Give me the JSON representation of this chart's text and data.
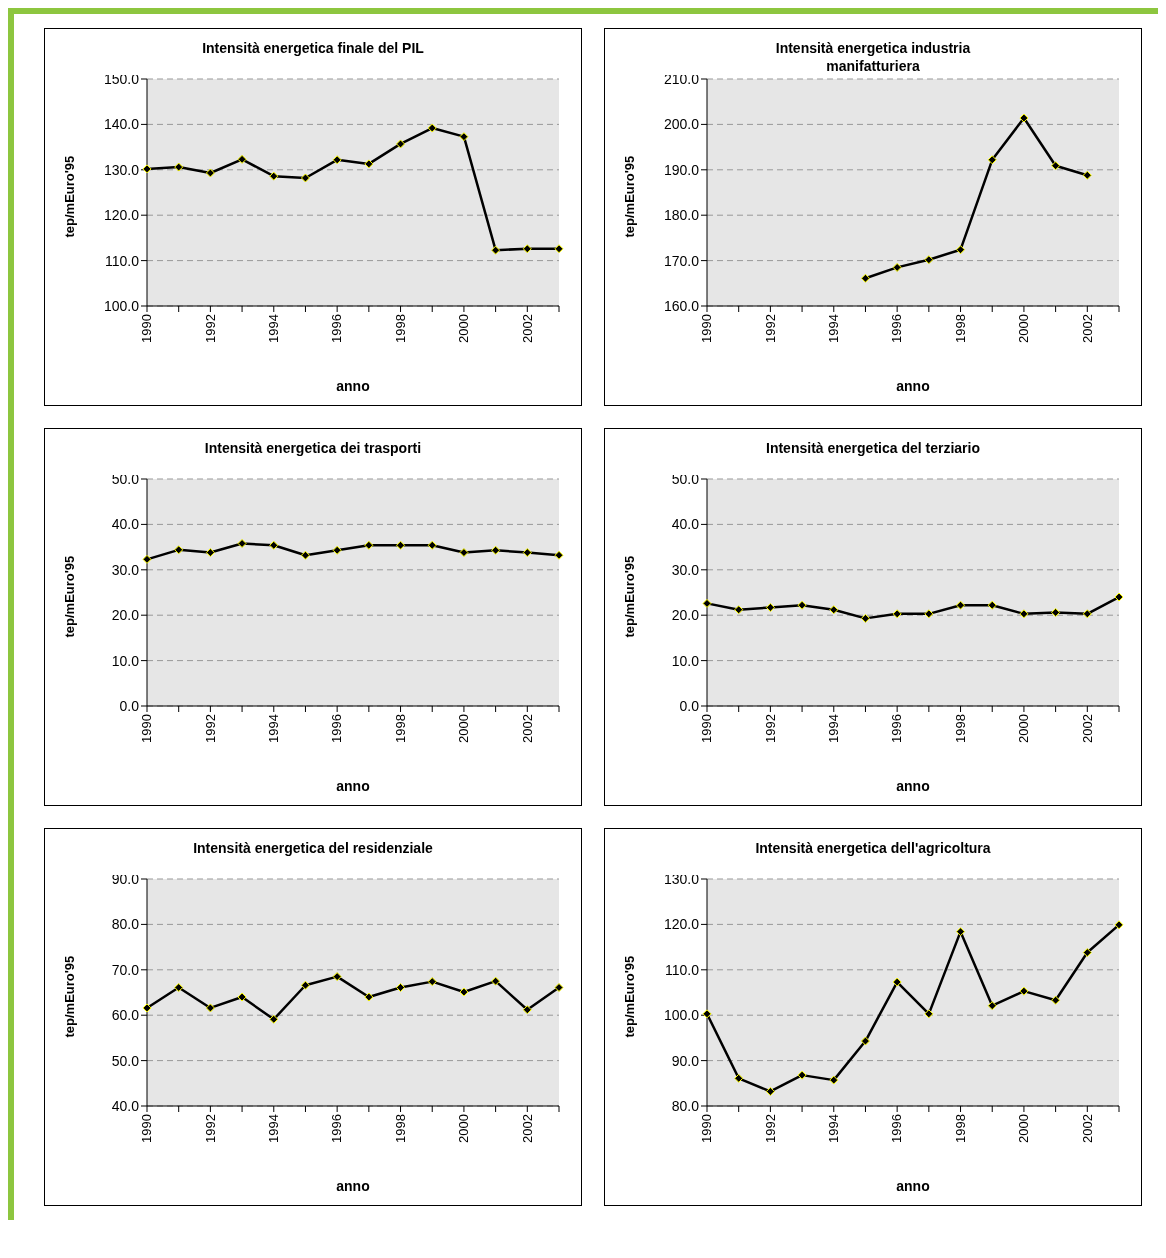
{
  "chart_data": [
    {
      "type": "line",
      "title": "Intensità energetica finale del PIL",
      "xlabel": "anno",
      "ylabel": "tep/mEuro'95",
      "categories": [
        "1990",
        null,
        "1992",
        null,
        "1994",
        null,
        "1996",
        null,
        "1998",
        null,
        "2000",
        null,
        "2002",
        null
      ],
      "series": [
        {
          "color": "#000000",
          "values": [
            130.2,
            130.6,
            129.3,
            132.3,
            128.6,
            128.2,
            132.2,
            131.3,
            135.7,
            139.2,
            137.3,
            112.3,
            112.6,
            112.6
          ]
        }
      ],
      "ylim": [
        100,
        150
      ],
      "yticks": [
        {
          "value": 100,
          "label": "100.0"
        },
        {
          "value": 110,
          "label": "110.0"
        },
        {
          "value": 120,
          "label": "120.0"
        },
        {
          "value": 130,
          "label": "130.0"
        },
        {
          "value": 140,
          "label": "140.0"
        },
        {
          "value": 150,
          "label": "150.0"
        }
      ],
      "grid": "y",
      "marker": "diamond"
    },
    {
      "type": "line",
      "title": "Intensità energetica industria manifatturiera",
      "xlabel": "anno",
      "ylabel": "tep/mEuro'95",
      "categories": [
        "1990",
        null,
        "1992",
        null,
        "1994",
        null,
        "1996",
        null,
        "1998",
        null,
        "2000",
        null,
        "2002",
        null
      ],
      "series": [
        {
          "color": "#000000",
          "values": [
            null,
            null,
            null,
            null,
            null,
            166.1,
            168.5,
            170.2,
            172.4,
            192.2,
            201.4,
            190.9,
            188.8,
            null
          ]
        }
      ],
      "ylim": [
        160,
        210
      ],
      "yticks": [
        {
          "value": 160,
          "label": "160.0"
        },
        {
          "value": 170,
          "label": "170.0"
        },
        {
          "value": 180,
          "label": "180.0"
        },
        {
          "value": 190,
          "label": "190.0"
        },
        {
          "value": 200,
          "label": "200.0"
        },
        {
          "value": 210,
          "label": "210.0"
        }
      ],
      "grid": "y",
      "marker": "diamond"
    },
    {
      "type": "line",
      "title": "Intensità energetica dei trasporti",
      "xlabel": "anno",
      "ylabel": "tep/mEuro'95",
      "categories": [
        "1990",
        null,
        "1992",
        null,
        "1994",
        null,
        "1996",
        null,
        "1998",
        null,
        "2000",
        null,
        "2002",
        null
      ],
      "series": [
        {
          "color": "#000000",
          "values": [
            32.3,
            34.4,
            33.8,
            35.8,
            35.4,
            33.2,
            34.3,
            35.4,
            35.4,
            35.4,
            33.8,
            34.3,
            33.8,
            33.2
          ]
        }
      ],
      "ylim": [
        0,
        50
      ],
      "yticks": [
        {
          "value": 0,
          "label": "0.0"
        },
        {
          "value": 10,
          "label": "10.0"
        },
        {
          "value": 20,
          "label": "20.0"
        },
        {
          "value": 30,
          "label": "30.0"
        },
        {
          "value": 40,
          "label": "40.0"
        },
        {
          "value": 50,
          "label": "50.0"
        }
      ],
      "grid": "y",
      "marker": "diamond"
    },
    {
      "type": "line",
      "title": "Intensità energetica del terziario",
      "xlabel": "anno",
      "ylabel": "tep/mEuro'95",
      "categories": [
        "1990",
        null,
        "1992",
        null,
        "1994",
        null,
        "1996",
        null,
        "1998",
        null,
        "2000",
        null,
        "2002",
        null
      ],
      "series": [
        {
          "color": "#000000",
          "values": [
            22.6,
            21.2,
            21.7,
            22.2,
            21.2,
            19.3,
            20.3,
            20.3,
            22.2,
            22.2,
            20.3,
            20.6,
            20.3,
            24.0
          ]
        }
      ],
      "ylim": [
        0,
        50
      ],
      "yticks": [
        {
          "value": 0,
          "label": "0.0"
        },
        {
          "value": 10,
          "label": "10.0"
        },
        {
          "value": 20,
          "label": "20.0"
        },
        {
          "value": 30,
          "label": "30.0"
        },
        {
          "value": 40,
          "label": "40.0"
        },
        {
          "value": 50,
          "label": "50.0"
        }
      ],
      "grid": "y",
      "marker": "diamond"
    },
    {
      "type": "line",
      "title": "Intensità energetica del residenziale",
      "xlabel": "anno",
      "ylabel": "tep/mEuro'95",
      "categories": [
        "1990",
        null,
        "1992",
        null,
        "1994",
        null,
        "1996",
        null,
        "1998",
        null,
        "2000",
        null,
        "2002",
        null
      ],
      "series": [
        {
          "color": "#000000",
          "values": [
            61.6,
            66.1,
            61.6,
            64.0,
            59.1,
            66.6,
            68.5,
            64.0,
            66.1,
            67.4,
            65.1,
            67.5,
            61.2,
            66.1
          ]
        }
      ],
      "ylim": [
        40,
        90
      ],
      "yticks": [
        {
          "value": 40,
          "label": "40.0"
        },
        {
          "value": 50,
          "label": "50.0"
        },
        {
          "value": 60,
          "label": "60.0"
        },
        {
          "value": 70,
          "label": "70.0"
        },
        {
          "value": 80,
          "label": "80.0"
        },
        {
          "value": 90,
          "label": "90.0"
        }
      ],
      "grid": "y",
      "marker": "diamond"
    },
    {
      "type": "line",
      "title": "Intensità energetica dell'agricoltura",
      "xlabel": "anno",
      "ylabel": "tep/mEuro'95",
      "categories": [
        "1990",
        null,
        "1992",
        null,
        "1994",
        null,
        "1996",
        null,
        "1998",
        null,
        "2000",
        null,
        "2002",
        null
      ],
      "series": [
        {
          "color": "#000000",
          "values": [
            100.3,
            86.1,
            83.2,
            86.8,
            85.7,
            94.3,
            107.3,
            100.3,
            118.4,
            102.1,
            105.3,
            103.3,
            113.8,
            119.9
          ]
        }
      ],
      "ylim": [
        80,
        130
      ],
      "yticks": [
        {
          "value": 80,
          "label": "80.0"
        },
        {
          "value": 90,
          "label": "90.0"
        },
        {
          "value": 100,
          "label": "100.0"
        },
        {
          "value": 110,
          "label": "110.0"
        },
        {
          "value": 120,
          "label": "120.0"
        },
        {
          "value": 130,
          "label": "130.0"
        }
      ],
      "grid": "y",
      "marker": "diamond"
    }
  ]
}
